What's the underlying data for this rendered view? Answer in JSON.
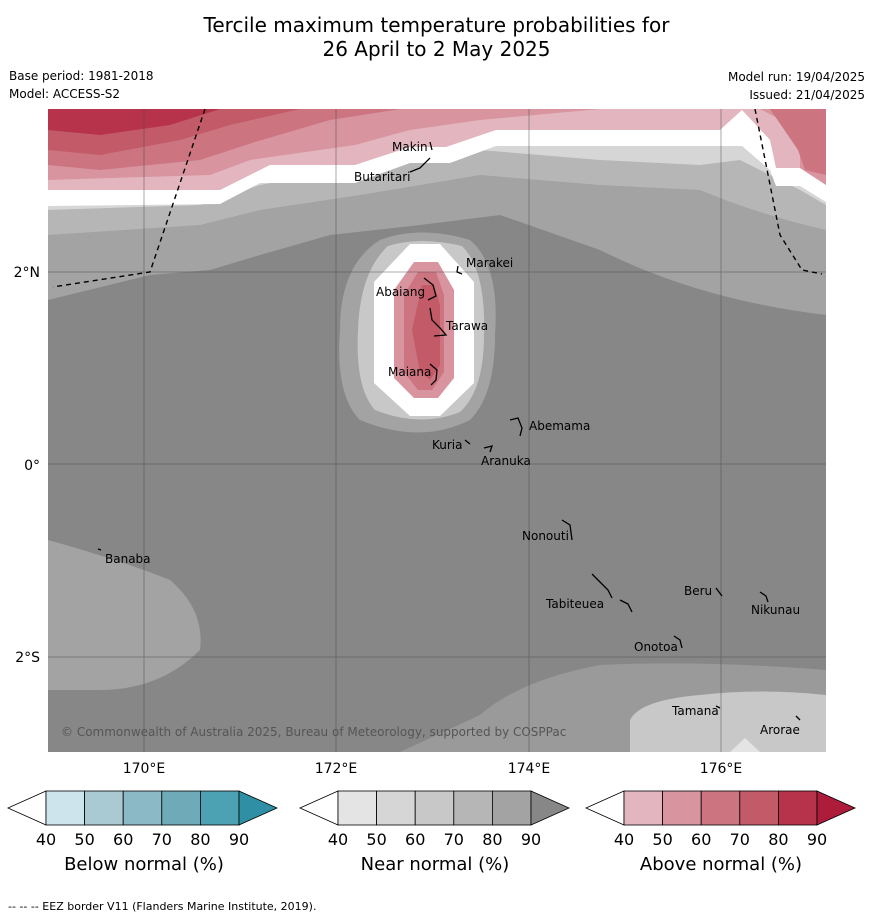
{
  "title_line1": "Tercile maximum temperature probabilities for",
  "title_line2": "26 April to 2 May 2025",
  "base_period": "Base period: 1981-2018",
  "model": "Model: ACCESS-S2",
  "model_run": "Model run: 19/04/2025",
  "issued": "Issued: 21/04/2025",
  "lat_labels": [
    "2°N",
    "0°",
    "2°S"
  ],
  "lon_labels": [
    "170°E",
    "172°E",
    "174°E",
    "176°E"
  ],
  "places": [
    "Makin",
    "Butaritari",
    "Marakei",
    "Abaiang",
    "Tarawa",
    "Maiana",
    "Abemama",
    "Kuria",
    "Aranuka",
    "Nonouti",
    "Banaba",
    "Tabiteuea",
    "Beru",
    "Nikunau",
    "Onotoa",
    "Tamana",
    "Arorae"
  ],
  "copyright": "© Commonwealth of Australia 2025, Bureau of Meteorology, supported by COSPPac",
  "colorbars": [
    {
      "label": "Below normal (%)",
      "ticks": [
        "40",
        "50",
        "60",
        "70",
        "80",
        "90"
      ],
      "colors": [
        "#ffffff",
        "#cde4ec",
        "#a9cad3",
        "#8cb9c6",
        "#6eaab8",
        "#4ca1b3",
        "#2f8fa4"
      ]
    },
    {
      "label": "Near normal (%)",
      "ticks": [
        "40",
        "50",
        "60",
        "70",
        "80",
        "90"
      ],
      "colors": [
        "#ffffff",
        "#e4e4e4",
        "#d6d6d6",
        "#c8c8c8",
        "#b6b6b6",
        "#a3a3a3",
        "#878787"
      ]
    },
    {
      "label": "Above normal (%)",
      "ticks": [
        "40",
        "50",
        "60",
        "70",
        "80",
        "90"
      ],
      "colors": [
        "#ffffff",
        "#e3b6bf",
        "#d8949f",
        "#cc7480",
        "#c25a68",
        "#b7334b",
        "#ad1d3b"
      ]
    }
  ],
  "footnote": "--  --  -- EEZ border V11 (Flanders Marine Institute, 2019)."
}
